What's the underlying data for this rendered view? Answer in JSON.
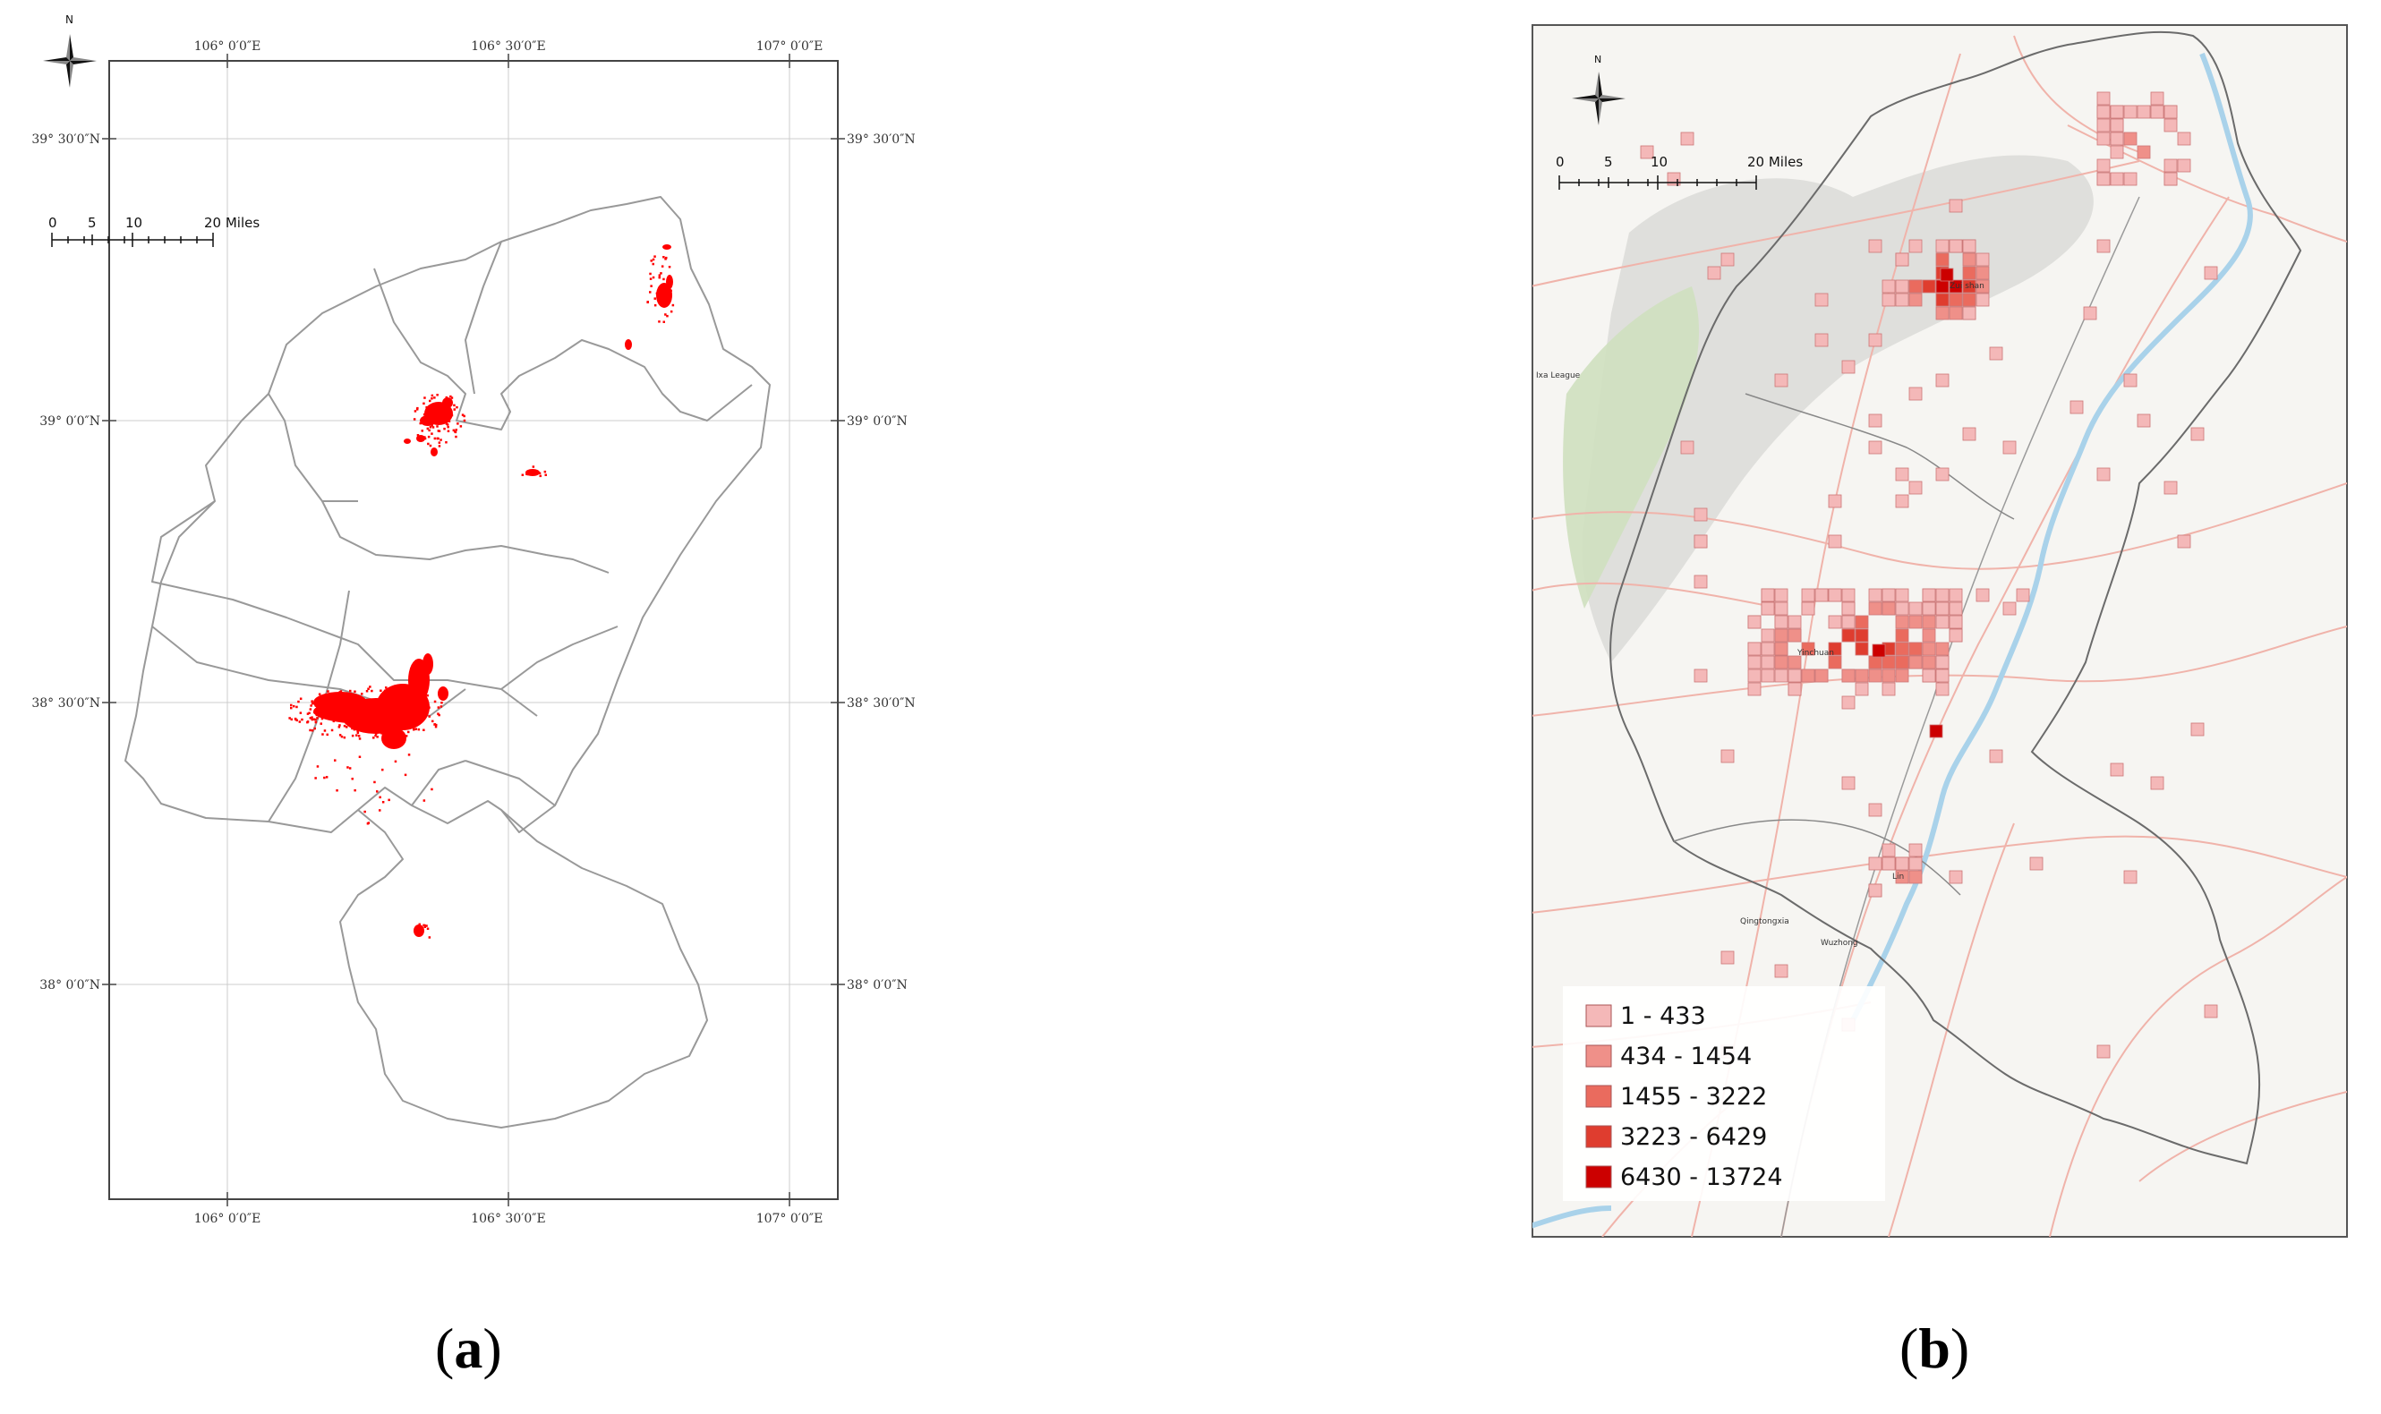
{
  "panel_a": {
    "label": "a",
    "north": "N",
    "scale": [
      "0",
      "5",
      "10",
      "20 Miles"
    ],
    "lon_top": [
      "106° 0′0″E",
      "106° 30′0″E",
      "107° 0′0″E"
    ],
    "lon_bottom": [
      "106° 0′0″E",
      "106° 30′0″E",
      "107° 0′0″E"
    ],
    "lat_left": [
      "39° 30′0″N",
      "39° 0′0″N",
      "38° 30′0″N",
      "38° 0′0″N"
    ],
    "lat_right": [
      "39° 30′0″N",
      "39° 0′0″N",
      "38° 30′0″N",
      "38° 0′0″N"
    ],
    "point_color": "#ff0000"
  },
  "panel_b": {
    "label": "b",
    "north": "N",
    "scale": [
      "0",
      "5",
      "10",
      "20 Miles"
    ],
    "places": [
      "Zui shan",
      "Ixa League",
      "Yinchuan",
      "Lin",
      "Qingtongxia",
      "Wuzhong"
    ],
    "legend": [
      {
        "label": "1 - 433",
        "color": "#f4b8b8"
      },
      {
        "label": "434 - 1454",
        "color": "#ef9089"
      },
      {
        "label": "1455 - 3222",
        "color": "#ea6b5e"
      },
      {
        "label": "3223 - 6429",
        "color": "#df3d2f"
      },
      {
        "label": "6430 - 13724",
        "color": "#cc0000"
      }
    ]
  }
}
